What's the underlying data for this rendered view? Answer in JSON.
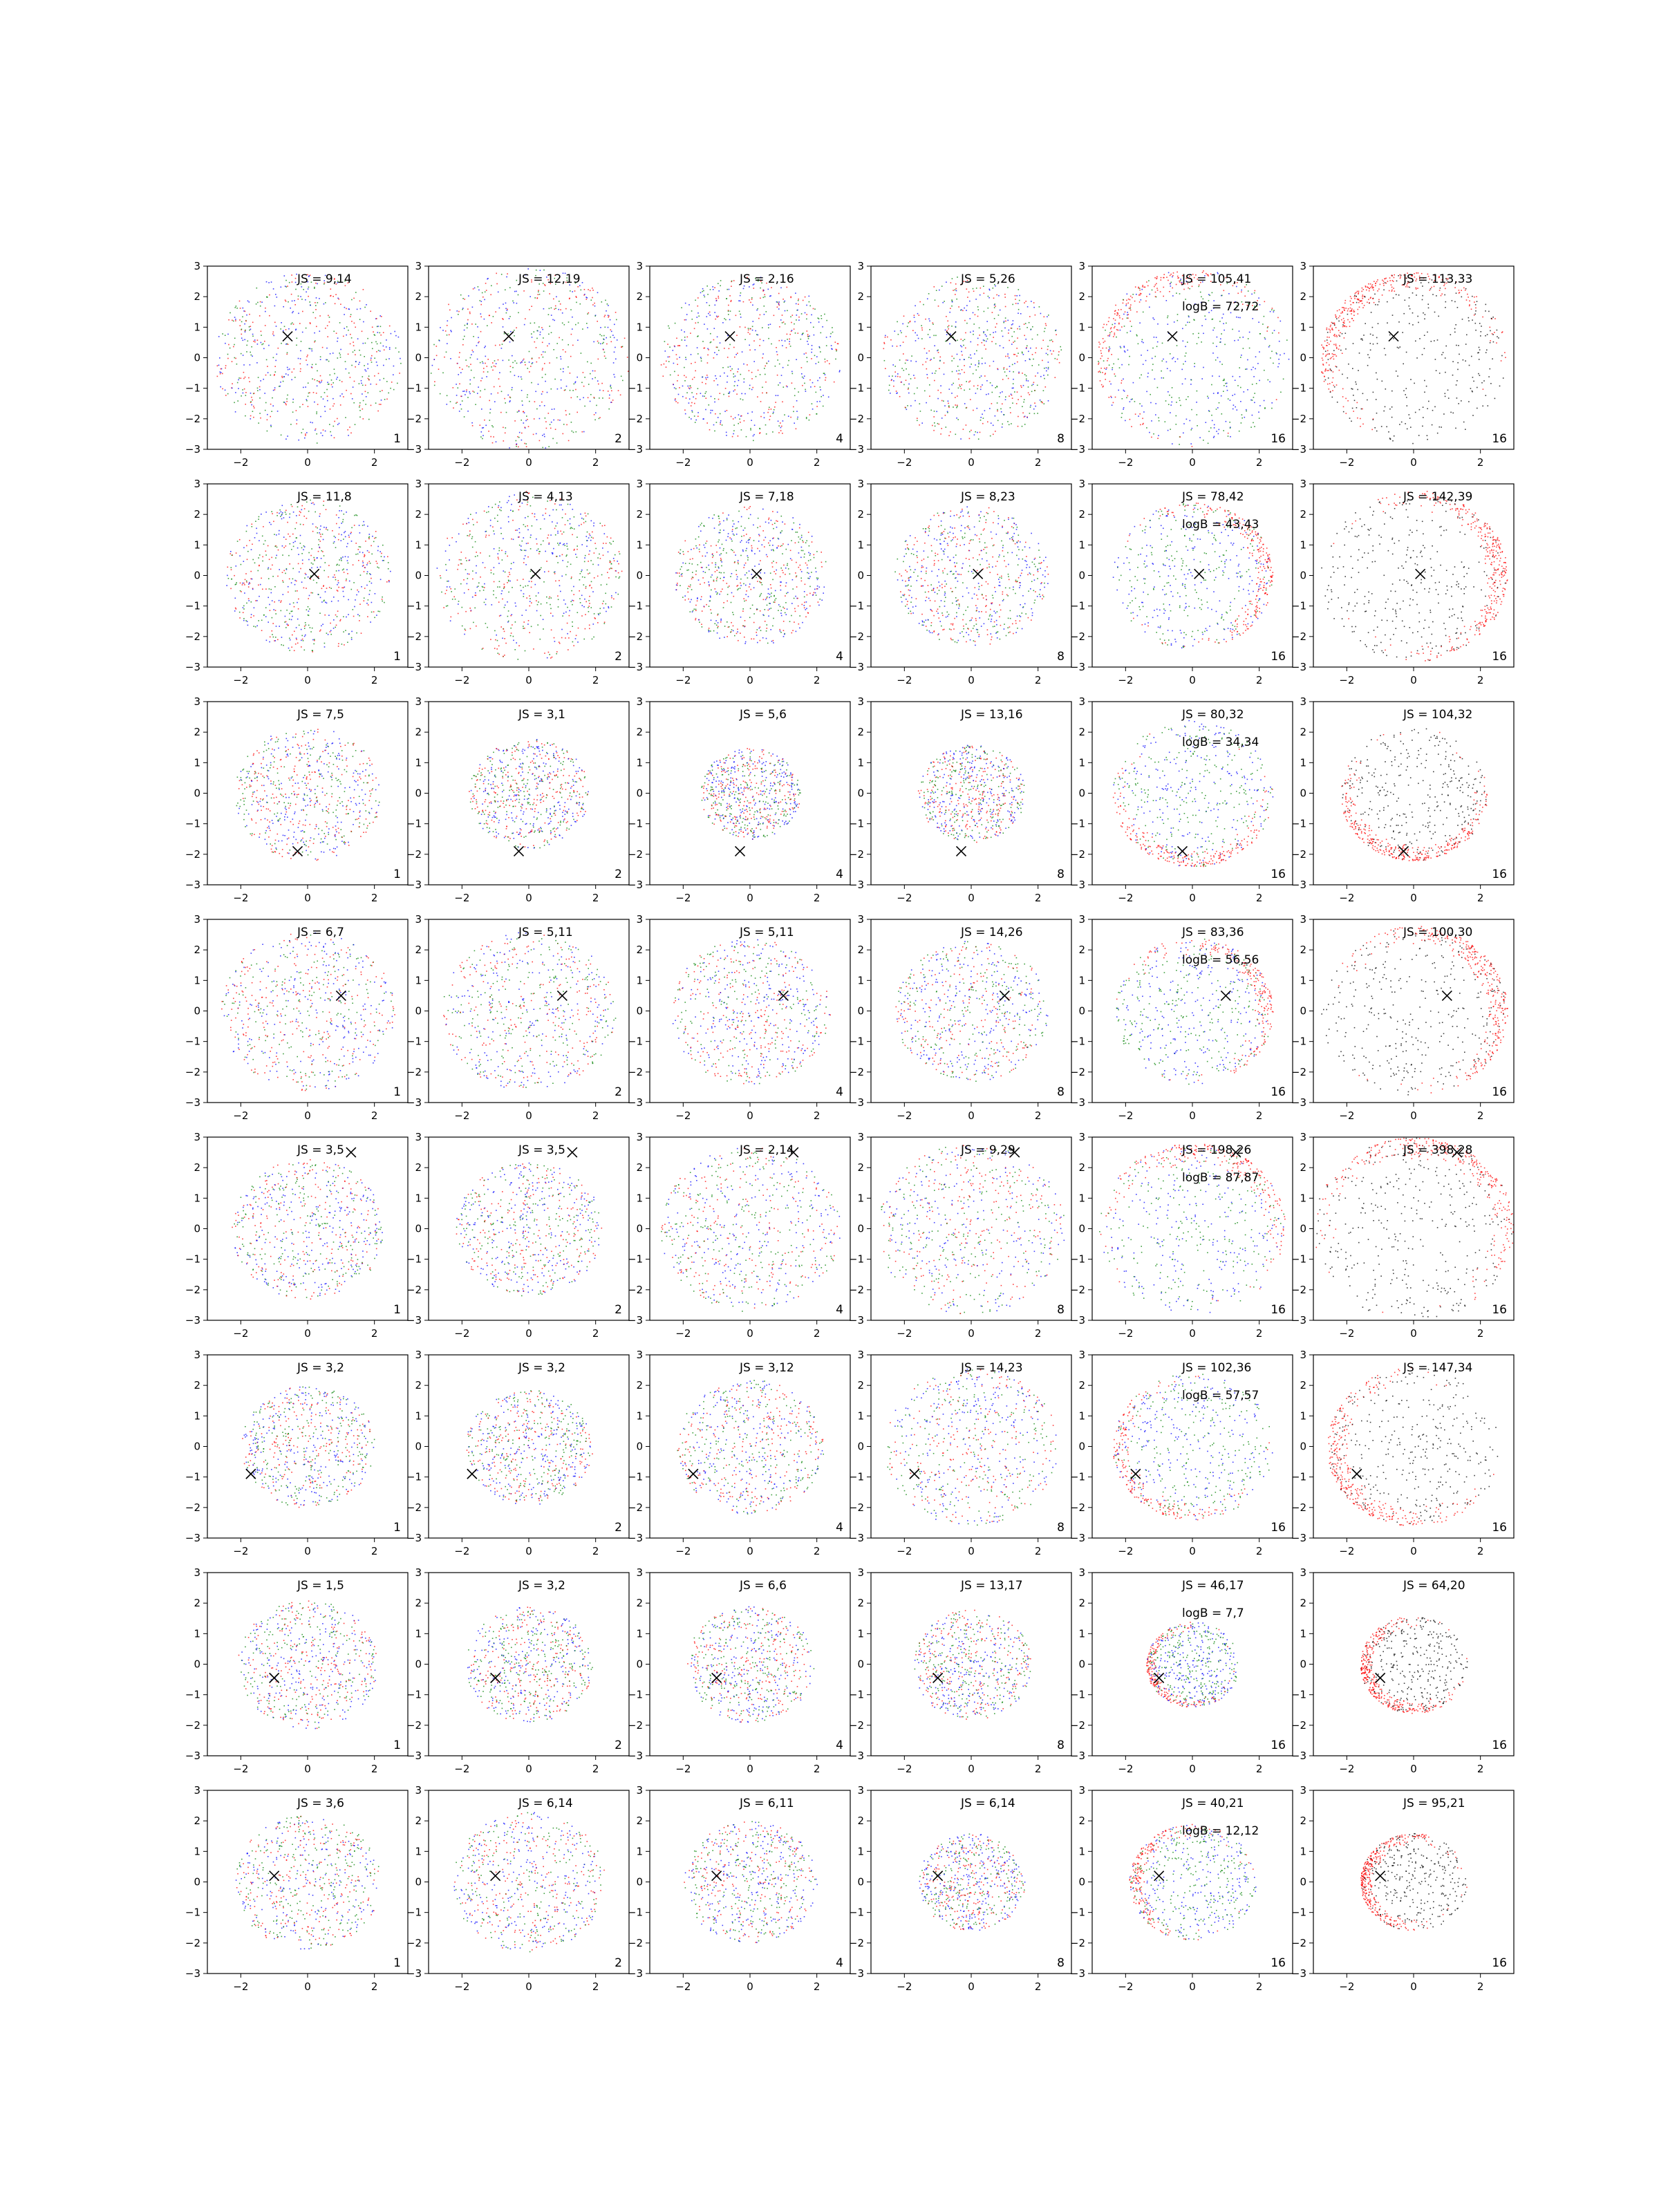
{
  "chart_data": {
    "type": "scatter",
    "layout": {
      "rows": 8,
      "cols": 6
    },
    "xlim": [
      -3,
      3
    ],
    "ylim": [
      -3,
      3
    ],
    "xticks": [
      -2,
      0,
      2
    ],
    "yticks": [
      -3,
      -2,
      -1,
      0,
      1,
      2,
      3
    ],
    "grid": false,
    "colors": {
      "red": "#ff0000",
      "green": "#008000",
      "blue": "#0000ff",
      "black": "#000000"
    },
    "column_dims": [
      "1",
      "2",
      "4",
      "8",
      "16",
      "16"
    ],
    "rows": [
      {
        "marker": [
          -0.6,
          0.7
        ],
        "js": [
          "JS = 9,14",
          "JS = 12,19",
          "JS = 2,16",
          "JS = 5,26",
          "JS = 105,41",
          "JS = 113,33"
        ],
        "logb": "logB = 72,72",
        "radius": [
          2.8,
          3.0,
          2.7,
          2.7,
          2.9,
          2.8
        ]
      },
      {
        "marker": [
          0.2,
          0.05
        ],
        "js": [
          "JS = 11,8",
          "JS = 4,13",
          "JS = 7,18",
          "JS = 8,23",
          "JS = 78,42",
          "JS = 142,39"
        ],
        "logb": "logB = 43,43",
        "radius": [
          2.5,
          2.8,
          2.3,
          2.3,
          2.4,
          2.8
        ]
      },
      {
        "marker": [
          -0.3,
          -1.9
        ],
        "js": [
          "JS = 7,5",
          "JS = 3,1",
          "JS = 5,6",
          "JS = 13,16",
          "JS = 80,32",
          "JS = 104,32"
        ],
        "logb": "logB = 34,34",
        "radius": [
          2.2,
          1.8,
          1.5,
          1.6,
          2.4,
          2.2
        ]
      },
      {
        "marker": [
          1.0,
          0.5
        ],
        "js": [
          "JS = 6,7",
          "JS = 5,11",
          "JS = 5,11",
          "JS = 14,26",
          "JS = 83,36",
          "JS = 100,30"
        ],
        "logb": "logB = 56,56",
        "radius": [
          2.6,
          2.6,
          2.4,
          2.3,
          2.4,
          2.8
        ]
      },
      {
        "marker": [
          1.3,
          2.5
        ],
        "js": [
          "JS = 3,5",
          "JS = 3,5",
          "JS = 2,14",
          "JS = 9,29",
          "JS = 198,26",
          "JS = 398,28"
        ],
        "logb": "logB = 87,87",
        "radius": [
          2.3,
          2.2,
          2.7,
          2.8,
          2.8,
          3.0
        ]
      },
      {
        "marker": [
          -1.7,
          -0.9
        ],
        "js": [
          "JS = 3,2",
          "JS = 3,2",
          "JS = 3,12",
          "JS = 14,23",
          "JS = 102,36",
          "JS = 147,34"
        ],
        "logb": "logB = 57,57",
        "radius": [
          2.0,
          1.9,
          2.2,
          2.6,
          2.4,
          2.6
        ]
      },
      {
        "marker": [
          -1.0,
          -0.45
        ],
        "js": [
          "JS = 1,5",
          "JS = 3,2",
          "JS = 6,6",
          "JS = 13,17",
          "JS = 46,17",
          "JS = 64,20"
        ],
        "logb": "logB = 7,7",
        "radius": [
          2.1,
          1.9,
          1.9,
          1.8,
          1.4,
          1.6
        ]
      },
      {
        "marker": [
          -1.0,
          0.2
        ],
        "js": [
          "JS = 3,6",
          "JS = 6,14",
          "JS = 6,11",
          "JS = 6,14",
          "JS = 40,21",
          "JS = 95,21"
        ],
        "logb": "logB = 12,12",
        "radius": [
          2.2,
          2.3,
          2.0,
          1.6,
          1.9,
          1.6
        ]
      }
    ]
  }
}
